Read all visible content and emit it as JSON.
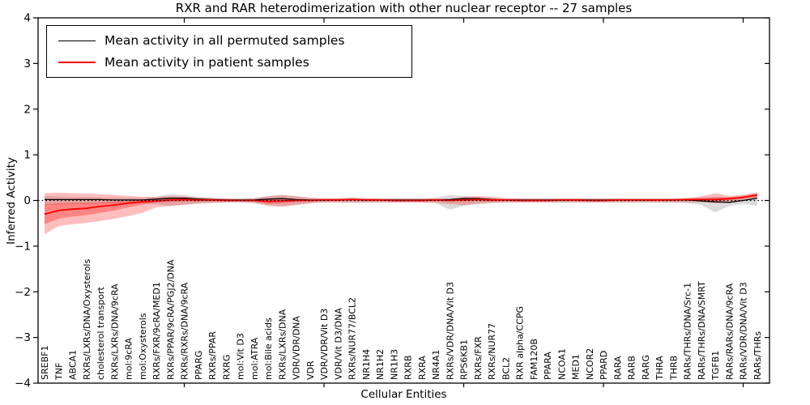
{
  "chart_data": {
    "type": "line",
    "title": "RXR and RAR heterodimerization with other nuclear receptor -- 27 samples",
    "xlabel": "Cellular Entities",
    "ylabel": "Inferred Activity",
    "ylim": [
      -4,
      4
    ],
    "ytick_values": [
      4,
      3,
      2,
      1,
      0,
      -1,
      -2,
      -3,
      -4
    ],
    "ytick_labels": [
      "4",
      "3",
      "2",
      "1",
      "0",
      "−1",
      "−2",
      "−3",
      "−4"
    ],
    "xtick_indices": [
      10,
      20,
      30,
      40,
      50
    ],
    "grid": false,
    "zero_line": true,
    "legend_position": "upper left",
    "categories": [
      "SREBF1",
      "TNF",
      "ABCA1",
      "RXRs/LXRs/DNA/Oxysterols",
      "cholesterol transport",
      "RXRs/LXRs/DNA/9cRA",
      "mol:9cRA",
      "mol:Oxysterols",
      "RXRs/FXR/9cRA/MED1",
      "RXRs/PPAR/9cRA/PGJ2/DNA",
      "RXRs/RXRs/DNA/9cRA",
      "PPARG",
      "RXRs/PPAR",
      "RXRG",
      "mol:Vit D3",
      "mol:ATRA",
      "mol:Bile acids",
      "RXRs/LXRs/DNA",
      "VDR/VDR/DNA",
      "VDR",
      "VDR/VDR/Vit D3",
      "VDR/Vit D3/DNA",
      "RXRs/NUR77/BCL2",
      "NR1H4",
      "NR1H2",
      "NR1H3",
      "RXRB",
      "RXRA",
      "NR4A1",
      "RXRs/VDR/DNA/Vit D3",
      "RPS6KB1",
      "RXRs/FXR",
      "RXRs/NUR77",
      "BCL2",
      "RXR alpha/CCPG",
      "FAM120B",
      "PPARA",
      "NCOA1",
      "MED1",
      "NCOR2",
      "PPARD",
      "RARA",
      "RARB",
      "RARG",
      "THRA",
      "THRB",
      "RARs/THRs/DNA/Src-1",
      "RARs/THRs/DNA/SMRT",
      "TGFB1",
      "RARs/RARs/DNA/9cRA",
      "RARs/VDR/DNA/Vit D3",
      "RARs/THRs"
    ],
    "series": [
      {
        "name": "Mean activity in all permuted samples",
        "color": "#000000",
        "values": [
          0.02,
          0.02,
          0.02,
          0.02,
          0.02,
          0.01,
          0.01,
          0.01,
          0.03,
          0.05,
          0.05,
          0.03,
          0.02,
          0.01,
          0.01,
          0.01,
          0.03,
          0.04,
          0.02,
          0.01,
          0.01,
          0.01,
          0.02,
          0.01,
          0.01,
          0.01,
          0.01,
          0.01,
          0.01,
          0.02,
          0.04,
          0.04,
          0.02,
          0.01,
          0.01,
          0.01,
          0.01,
          0.01,
          0.01,
          0.01,
          0.01,
          0.01,
          0.01,
          0.01,
          0.01,
          0.01,
          0.01,
          -0.01,
          -0.03,
          -0.04,
          0.0,
          0.05
        ]
      },
      {
        "name": "Mean activity in patient samples",
        "color": "#ff0000",
        "values": [
          -0.3,
          -0.22,
          -0.19,
          -0.17,
          -0.13,
          -0.1,
          -0.06,
          -0.03,
          -0.01,
          0.01,
          0.02,
          0.01,
          0.01,
          0.0,
          0.0,
          0.0,
          -0.02,
          -0.01,
          0.0,
          0.0,
          0.01,
          0.01,
          0.02,
          0.01,
          0.01,
          0.0,
          0.0,
          0.0,
          0.01,
          0.0,
          0.01,
          0.02,
          0.01,
          0.01,
          0.0,
          0.0,
          0.0,
          0.01,
          0.01,
          0.0,
          0.0,
          0.01,
          0.01,
          0.01,
          0.01,
          0.01,
          0.02,
          0.02,
          0.02,
          0.04,
          0.07,
          0.12
        ]
      }
    ],
    "bands": [
      {
        "name": "permuted-samples-spread",
        "fill": "rgba(0,0,0,0.14)",
        "hi": [
          0.1,
          0.09,
          0.08,
          0.08,
          0.07,
          0.07,
          0.06,
          0.06,
          0.08,
          0.14,
          0.12,
          0.08,
          0.06,
          0.05,
          0.05,
          0.06,
          0.1,
          0.12,
          0.09,
          0.06,
          0.05,
          0.05,
          0.06,
          0.05,
          0.05,
          0.05,
          0.05,
          0.05,
          0.06,
          0.12,
          0.1,
          0.08,
          0.06,
          0.05,
          0.05,
          0.05,
          0.05,
          0.05,
          0.05,
          0.05,
          0.05,
          0.05,
          0.05,
          0.05,
          0.05,
          0.05,
          0.06,
          0.07,
          0.08,
          0.07,
          0.08,
          0.1
        ],
        "lo": [
          -0.1,
          -0.09,
          -0.08,
          -0.08,
          -0.07,
          -0.07,
          -0.06,
          -0.06,
          -0.08,
          -0.12,
          -0.1,
          -0.07,
          -0.06,
          -0.05,
          -0.05,
          -0.06,
          -0.1,
          -0.12,
          -0.09,
          -0.06,
          -0.05,
          -0.05,
          -0.06,
          -0.05,
          -0.05,
          -0.05,
          -0.05,
          -0.05,
          -0.06,
          -0.2,
          -0.12,
          -0.08,
          -0.06,
          -0.05,
          -0.05,
          -0.05,
          -0.05,
          -0.05,
          -0.05,
          -0.05,
          -0.05,
          -0.05,
          -0.05,
          -0.05,
          -0.05,
          -0.05,
          -0.06,
          -0.1,
          -0.26,
          -0.12,
          -0.08,
          -0.11
        ]
      },
      {
        "name": "patient-samples-outer-spread",
        "fill": "rgba(255,20,20,0.28)",
        "hi": [
          0.16,
          0.17,
          0.16,
          0.15,
          0.14,
          0.12,
          0.1,
          0.08,
          0.08,
          0.1,
          0.09,
          0.06,
          0.05,
          0.04,
          0.03,
          0.04,
          0.09,
          0.12,
          0.09,
          0.06,
          0.05,
          0.05,
          0.06,
          0.05,
          0.04,
          0.04,
          0.04,
          0.04,
          0.05,
          0.04,
          0.08,
          0.1,
          0.08,
          0.05,
          0.04,
          0.04,
          0.04,
          0.04,
          0.04,
          0.04,
          0.04,
          0.04,
          0.04,
          0.04,
          0.04,
          0.04,
          0.05,
          0.09,
          0.16,
          0.1,
          0.13,
          0.18
        ],
        "lo": [
          -0.74,
          -0.56,
          -0.52,
          -0.49,
          -0.45,
          -0.4,
          -0.34,
          -0.27,
          -0.15,
          -0.12,
          -0.09,
          -0.06,
          -0.05,
          -0.04,
          -0.03,
          -0.05,
          -0.12,
          -0.14,
          -0.1,
          -0.06,
          -0.04,
          -0.04,
          -0.04,
          -0.04,
          -0.04,
          -0.04,
          -0.04,
          -0.04,
          -0.05,
          -0.08,
          -0.1,
          -0.07,
          -0.05,
          -0.04,
          -0.04,
          -0.04,
          -0.04,
          -0.04,
          -0.04,
          -0.04,
          -0.04,
          -0.04,
          -0.04,
          -0.04,
          -0.04,
          -0.04,
          -0.04,
          -0.04,
          -0.06,
          -0.05,
          0.01,
          0.06
        ]
      },
      {
        "name": "patient-samples-inner-spread",
        "fill": "rgba(255,0,0,0.30)",
        "hi": [
          -0.08,
          -0.06,
          -0.05,
          -0.05,
          -0.04,
          -0.02,
          -0.01,
          0.01,
          0.02,
          0.05,
          0.05,
          0.04,
          0.03,
          0.02,
          0.02,
          0.02,
          0.03,
          0.04,
          0.03,
          0.02,
          0.03,
          0.03,
          0.04,
          0.03,
          0.03,
          0.02,
          0.02,
          0.02,
          0.03,
          0.02,
          0.04,
          0.05,
          0.04,
          0.03,
          0.02,
          0.02,
          0.02,
          0.03,
          0.03,
          0.02,
          0.02,
          0.03,
          0.03,
          0.03,
          0.03,
          0.03,
          0.04,
          0.05,
          0.07,
          0.07,
          0.1,
          0.15
        ],
        "lo": [
          -0.52,
          -0.4,
          -0.35,
          -0.32,
          -0.27,
          -0.22,
          -0.15,
          -0.09,
          -0.05,
          -0.03,
          -0.02,
          -0.02,
          -0.01,
          -0.02,
          -0.02,
          -0.02,
          -0.07,
          -0.06,
          -0.03,
          -0.02,
          -0.01,
          -0.01,
          0.0,
          -0.01,
          -0.01,
          -0.02,
          -0.02,
          -0.02,
          -0.01,
          -0.02,
          -0.02,
          -0.01,
          -0.02,
          -0.01,
          -0.02,
          -0.02,
          -0.02,
          -0.01,
          -0.01,
          -0.02,
          -0.02,
          -0.01,
          -0.01,
          -0.01,
          -0.01,
          -0.01,
          0.0,
          0.0,
          -0.02,
          0.01,
          0.04,
          0.09
        ]
      }
    ],
    "colors": {
      "frame": "#000000",
      "background": "#ffffff",
      "zero_line": "#000000"
    }
  }
}
